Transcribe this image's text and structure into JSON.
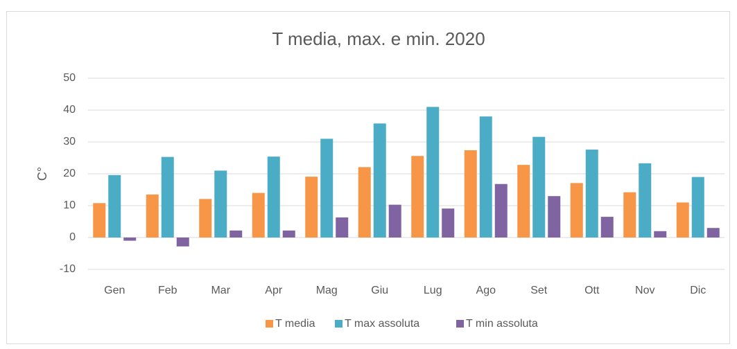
{
  "chart_data": {
    "type": "bar",
    "title": "T media, max. e min. 2020",
    "y_label": "C°",
    "categories": [
      "Gen",
      "Feb",
      "Mar",
      "Apr",
      "Mag",
      "Giu",
      "Lug",
      "Ago",
      "Set",
      "Ott",
      "Nov",
      "Dic"
    ],
    "series": [
      {
        "name": "T media",
        "color": "#f79646",
        "values": [
          10.8,
          13.5,
          12.1,
          14,
          19.1,
          22.1,
          25.6,
          27.4,
          22.8,
          17.1,
          14.2,
          11
        ]
      },
      {
        "name": "T max assoluta",
        "color": "#4bacc6",
        "values": [
          19.6,
          25.3,
          21,
          25.4,
          31,
          35.8,
          41,
          38,
          31.6,
          27.6,
          23.3,
          19
        ]
      },
      {
        "name": "T min assoluta",
        "color": "#8064a2",
        "values": [
          -1,
          -2.8,
          2.2,
          2.2,
          6.3,
          10.3,
          9.1,
          16.8,
          13,
          6.5,
          2,
          3
        ]
      }
    ],
    "ylim": [
      -10,
      50
    ],
    "yticks": [
      -10,
      0,
      10,
      20,
      30,
      40,
      50
    ],
    "grid": true,
    "legend": "bottom"
  }
}
